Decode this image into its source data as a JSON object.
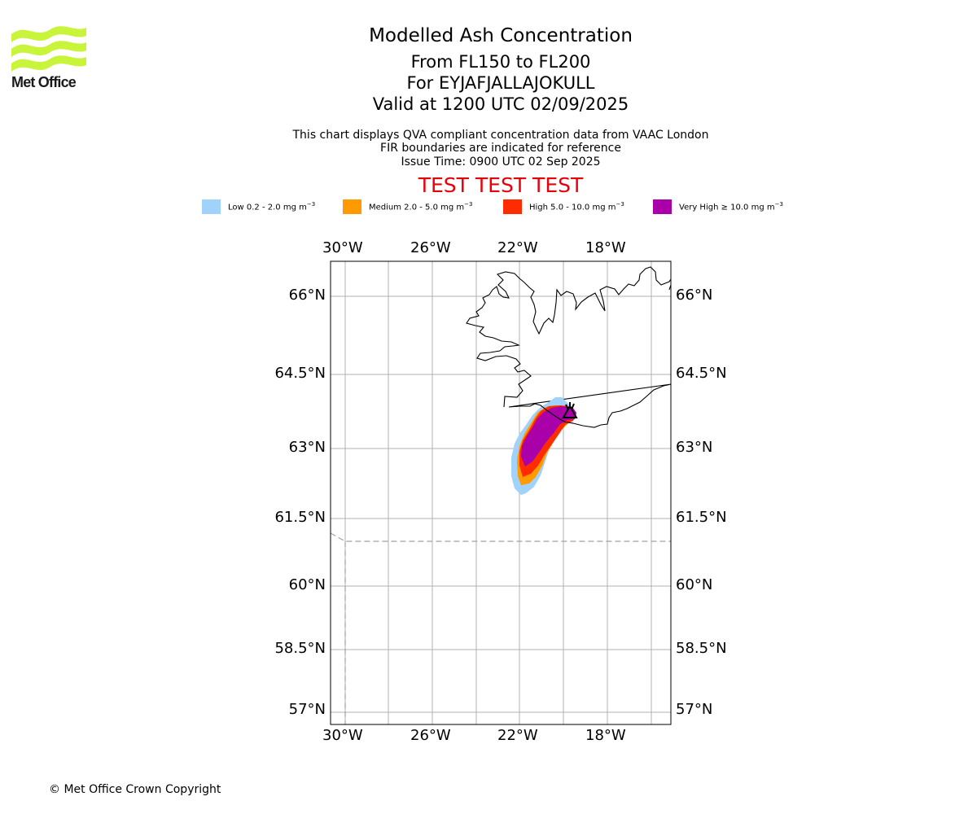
{
  "logo": {
    "text": "Met Office",
    "color": "#c8f43a"
  },
  "header": {
    "title": "Modelled Ash Concentration",
    "levels": "From FL150 to FL200",
    "volcano": "For EYJAFJALLAJOKULL",
    "valid": "Valid at 1200 UTC 02/09/2025",
    "info_line1": "This chart displays QVA compliant concentration data from VAAC London",
    "info_line2": "FIR boundaries are indicated for reference",
    "issue_time": "Issue Time: 0900 UTC 02 Sep 2025",
    "test_banner": "TEST TEST TEST",
    "test_color": "#e8000b"
  },
  "legend": [
    {
      "label": "Low 0.2 - 2.0 mg m",
      "sup": "−3",
      "color": "#a0d2fa"
    },
    {
      "label": "Medium 2.0 - 5.0 mg m",
      "sup": "−3",
      "color": "#ff9b00"
    },
    {
      "label": "High 5.0 - 10.0 mg m",
      "sup": "−3",
      "color": "#ff2c00"
    },
    {
      "label": "Very High ≥ 10.0 mg m",
      "sup": "−3",
      "color": "#aa00aa"
    }
  ],
  "map": {
    "lon_ticks": [
      "30°W",
      "26°W",
      "22°W",
      "18°W"
    ],
    "lat_ticks": [
      "66°N",
      "64.5°N",
      "63°N",
      "61.5°N",
      "60°N",
      "58.5°N",
      "57°N"
    ],
    "gridlines": true,
    "fir_boundary": "dashed grey",
    "volcano_marker": "triangle"
  },
  "footer": {
    "copyright": "© Met Office Crown Copyright"
  }
}
